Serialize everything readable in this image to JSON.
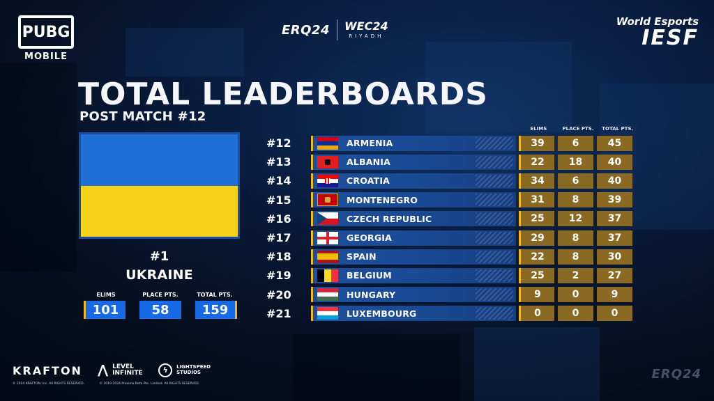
{
  "header": {
    "pubg_logo_text": "PUBG",
    "pubg_logo_sub": "MOBILE",
    "erq_logo": "ERQ24",
    "wec_logo": "WEC24",
    "wec_sub": "RIYADH",
    "iesf_top": "World Esports",
    "iesf_main": "IESF"
  },
  "title": "TOTAL LEADERBOARDS",
  "subtitle": "POST MATCH #12",
  "winner": {
    "rank": "#1",
    "name": "UKRAINE",
    "flag": {
      "colors": [
        "#1f6fd6",
        "#f7d21b"
      ]
    },
    "stat_labels": [
      "ELIMS",
      "PLACE PTS.",
      "TOTAL PTS."
    ],
    "elims": "101",
    "place_pts": "58",
    "total_pts": "159"
  },
  "columns": [
    "ELIMS",
    "PLACE PTS.",
    "TOTAL PTS."
  ],
  "rows": [
    {
      "rank": "#12",
      "country": "ARMENIA",
      "elims": "39",
      "place": "6",
      "total": "45"
    },
    {
      "rank": "#13",
      "country": "ALBANIA",
      "elims": "22",
      "place": "18",
      "total": "40"
    },
    {
      "rank": "#14",
      "country": "CROATIA",
      "elims": "34",
      "place": "6",
      "total": "40"
    },
    {
      "rank": "#15",
      "country": "MONTENEGRO",
      "elims": "31",
      "place": "8",
      "total": "39"
    },
    {
      "rank": "#16",
      "country": "CZECH REPUBLIC",
      "elims": "25",
      "place": "12",
      "total": "37"
    },
    {
      "rank": "#17",
      "country": "GEORGIA",
      "elims": "29",
      "place": "8",
      "total": "37"
    },
    {
      "rank": "#18",
      "country": "SPAIN",
      "elims": "22",
      "place": "8",
      "total": "30"
    },
    {
      "rank": "#19",
      "country": "BELGIUM",
      "elims": "25",
      "place": "2",
      "total": "27"
    },
    {
      "rank": "#20",
      "country": "HUNGARY",
      "elims": "9",
      "place": "0",
      "total": "9"
    },
    {
      "rank": "#21",
      "country": "LUXEMBOURG",
      "elims": "0",
      "place": "0",
      "total": "0"
    }
  ],
  "footer": {
    "krafton": "KRAFTON",
    "level_infinite": "LEVEL INFINITE",
    "lightspeed": "LIGHTSPEED STUDIOS",
    "copyright_1": "© 2024 KRAFTON, Inc. All RIGHTS RESERVED.",
    "copyright_2": "© 2019-2024 Proxima Beta Pte. Limited. All RIGHTS RESERVED.",
    "erq_bottom": "ERQ24"
  },
  "colors": {
    "accent_gold": "#f2b61c",
    "bar_blue": "#1e4f9c",
    "stat_brown": "#8a6a22",
    "winner_blue": "#1769e6"
  }
}
